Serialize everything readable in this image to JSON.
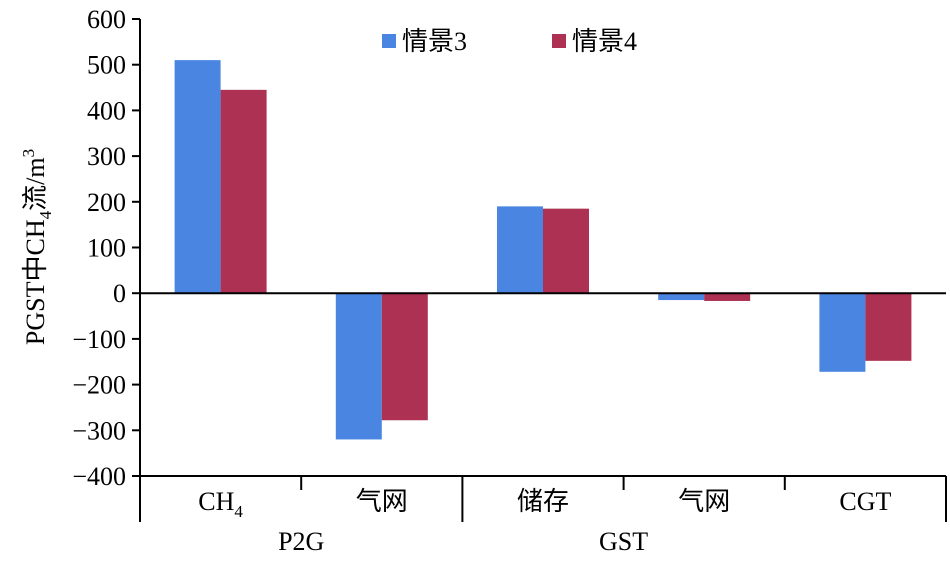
{
  "chart_data": {
    "type": "bar",
    "categories": [
      "CH4",
      "气网",
      "储存",
      "气网",
      "CGT"
    ],
    "category_labels": [
      {
        "main": "CH",
        "sub": "4"
      },
      {
        "main": "气网",
        "sub": ""
      },
      {
        "main": "储存",
        "sub": ""
      },
      {
        "main": "气网",
        "sub": ""
      },
      {
        "main": "CGT",
        "sub": ""
      }
    ],
    "groups": [
      {
        "label": "P2G",
        "categories": [
          0,
          1
        ]
      },
      {
        "label": "GST",
        "categories": [
          2,
          3
        ]
      }
    ],
    "series": [
      {
        "name": "情景3",
        "color": "#4a86e1",
        "values": [
          510,
          -320,
          190,
          -15,
          -172
        ]
      },
      {
        "name": "情景4",
        "color": "#ad3152",
        "values": [
          445,
          -278,
          185,
          -17,
          -148
        ]
      }
    ],
    "ylim": [
      -400,
      600
    ],
    "yticks": [
      600,
      500,
      400,
      300,
      200,
      100,
      0,
      -100,
      -200,
      -300,
      -400
    ],
    "ytick_labels": [
      "600",
      "500",
      "400",
      "300",
      "200",
      "100",
      "0",
      "−100",
      "−200",
      "−300",
      "−400"
    ],
    "ylabel": {
      "prefix": "PGST中CH",
      "sub": "4",
      "suffix": "流/m",
      "sup": "3"
    },
    "xlabel": "",
    "legend_position": "top",
    "grid": false
  }
}
